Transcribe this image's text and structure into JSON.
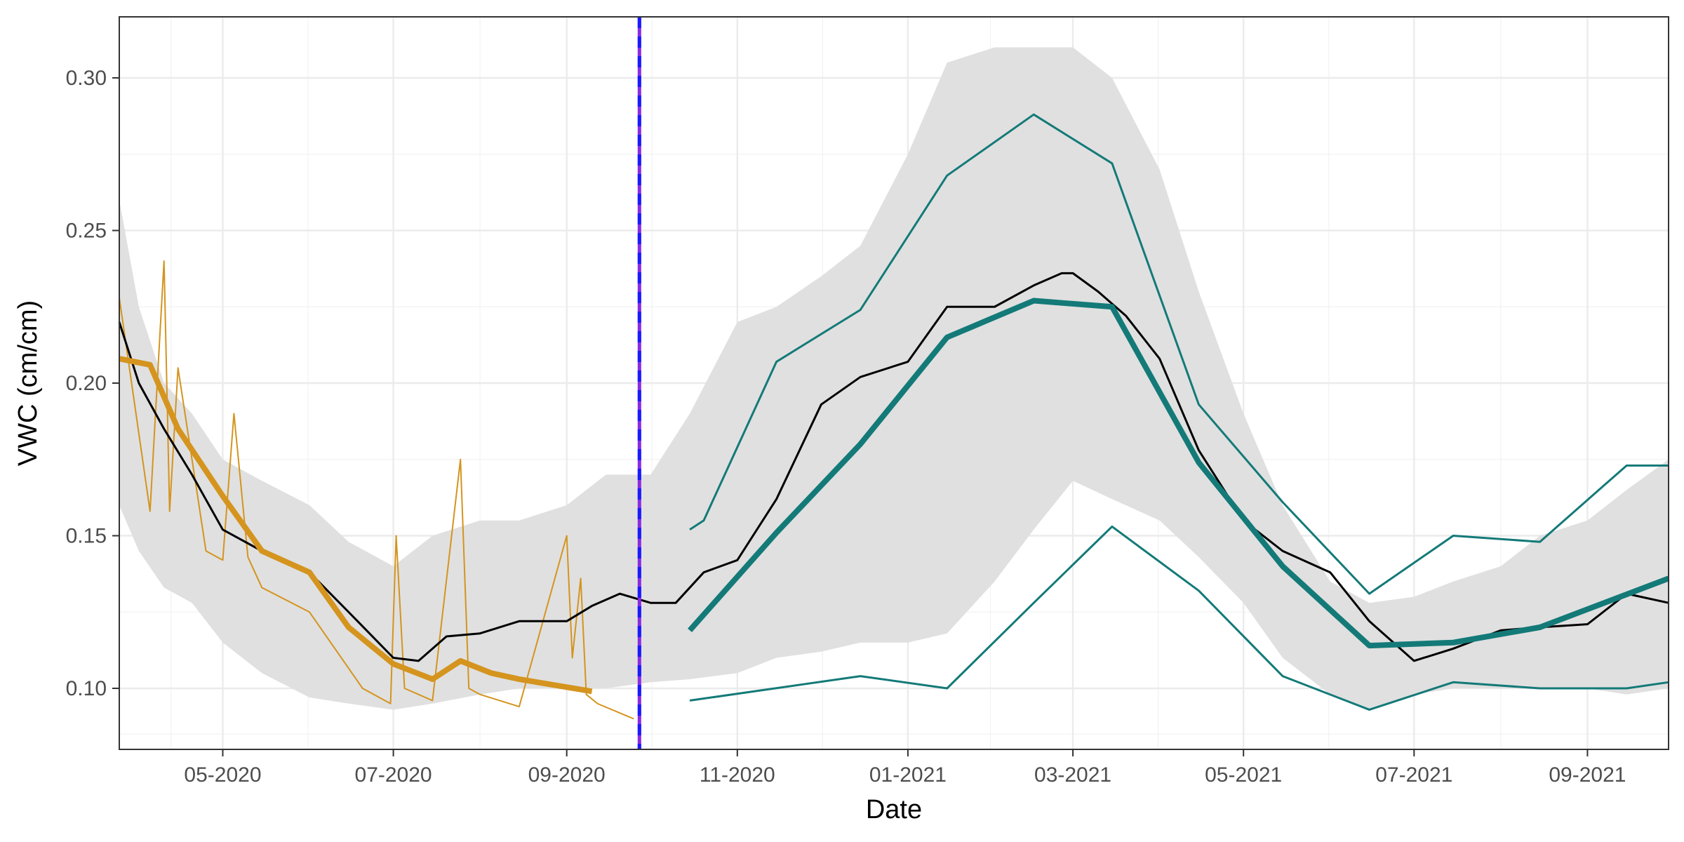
{
  "chart_data": {
    "type": "line",
    "xlabel": "Date",
    "ylabel": "VWC (cm/cm)",
    "xlim": [
      "2020-03-25",
      "2021-09-30"
    ],
    "ylim": [
      0.08,
      0.32
    ],
    "x_ticks": [
      "2020-05-01",
      "2020-07-01",
      "2020-09-01",
      "2020-11-01",
      "2021-01-01",
      "2021-03-01",
      "2021-05-01",
      "2021-07-01",
      "2021-09-01"
    ],
    "x_tick_labels": [
      "05-2020",
      "07-2020",
      "09-2020",
      "11-2020",
      "01-2021",
      "03-2021",
      "05-2021",
      "07-2021",
      "09-2021"
    ],
    "y_ticks": [
      0.1,
      0.15,
      0.2,
      0.25,
      0.3
    ],
    "y_tick_labels": [
      "0.10",
      "0.15",
      "0.20",
      "0.25",
      "0.30"
    ],
    "grid": true,
    "colors": {
      "band": "#e0e0e0",
      "observed": "#000000",
      "orange": "#d4941e",
      "teal": "#137a78",
      "vline_solid": "#8a2be2",
      "vline_dashed": "#1a1aff"
    },
    "vertical_line": {
      "x": "2020-09-27"
    },
    "band": {
      "x": [
        "2020-03-25",
        "2020-04-01",
        "2020-04-10",
        "2020-04-20",
        "2020-05-01",
        "2020-05-15",
        "2020-06-01",
        "2020-06-15",
        "2020-07-01",
        "2020-07-15",
        "2020-08-01",
        "2020-08-15",
        "2020-09-01",
        "2020-09-15",
        "2020-10-01",
        "2020-10-15",
        "2020-11-01",
        "2020-11-15",
        "2020-12-01",
        "2020-12-15",
        "2021-01-01",
        "2021-01-15",
        "2021-02-01",
        "2021-02-15",
        "2021-03-01",
        "2021-03-15",
        "2021-04-01",
        "2021-04-15",
        "2021-05-01",
        "2021-05-15",
        "2021-06-01",
        "2021-06-15",
        "2021-07-01",
        "2021-07-15",
        "2021-08-01",
        "2021-08-15",
        "2021-09-01",
        "2021-09-15",
        "2021-09-30"
      ],
      "lower": [
        0.16,
        0.145,
        0.133,
        0.128,
        0.115,
        0.105,
        0.097,
        0.095,
        0.093,
        0.095,
        0.098,
        0.1,
        0.1,
        0.1,
        0.102,
        0.103,
        0.105,
        0.11,
        0.112,
        0.115,
        0.115,
        0.118,
        0.135,
        0.152,
        0.168,
        0.162,
        0.155,
        0.143,
        0.128,
        0.11,
        0.098,
        0.093,
        0.098,
        0.1,
        0.1,
        0.1,
        0.1,
        0.098,
        0.1
      ],
      "upper": [
        0.26,
        0.225,
        0.2,
        0.19,
        0.175,
        0.168,
        0.16,
        0.148,
        0.14,
        0.15,
        0.155,
        0.155,
        0.16,
        0.17,
        0.17,
        0.19,
        0.22,
        0.225,
        0.235,
        0.245,
        0.275,
        0.305,
        0.31,
        0.31,
        0.31,
        0.3,
        0.27,
        0.23,
        0.19,
        0.16,
        0.135,
        0.128,
        0.13,
        0.135,
        0.14,
        0.15,
        0.155,
        0.165,
        0.175
      ]
    },
    "series": [
      {
        "x": [
          "2020-03-25",
          "2020-04-01",
          "2020-04-10",
          "2020-04-20",
          "2020-05-01",
          "2020-05-15",
          "2020-06-01",
          "2020-06-15",
          "2020-07-01",
          "2020-07-10",
          "2020-07-20",
          "2020-08-01",
          "2020-08-15",
          "2020-09-01",
          "2020-09-10",
          "2020-09-20",
          "2020-10-01",
          "2020-10-10",
          "2020-10-20",
          "2020-11-01",
          "2020-11-15",
          "2020-12-01",
          "2020-12-15",
          "2021-01-01",
          "2021-01-15",
          "2021-02-01",
          "2021-02-15",
          "2021-02-25",
          "2021-03-01",
          "2021-03-10",
          "2021-03-20",
          "2021-04-01",
          "2021-04-15",
          "2021-05-01",
          "2021-05-15",
          "2021-06-01",
          "2021-06-15",
          "2021-07-01",
          "2021-07-15",
          "2021-08-01",
          "2021-08-15",
          "2021-09-01",
          "2021-09-15",
          "2021-09-30"
        ],
        "y": [
          0.22,
          0.2,
          0.185,
          0.17,
          0.152,
          0.145,
          0.138,
          0.125,
          0.11,
          0.109,
          0.117,
          0.118,
          0.122,
          0.122,
          0.127,
          0.131,
          0.128,
          0.128,
          0.138,
          0.142,
          0.162,
          0.193,
          0.202,
          0.207,
          0.225,
          0.225,
          0.232,
          0.236,
          0.236,
          0.23,
          0.222,
          0.208,
          0.178,
          0.155,
          0.145,
          0.138,
          0.122,
          0.109,
          0.113,
          0.119,
          0.12,
          0.121,
          0.131,
          0.128
        ]
      },
      {
        "x": [
          "2020-03-25",
          "2020-04-05",
          "2020-04-15",
          "2020-05-01",
          "2020-05-15",
          "2020-06-01",
          "2020-06-15",
          "2020-07-01",
          "2020-07-15",
          "2020-07-25",
          "2020-08-05",
          "2020-08-15",
          "2020-09-10"
        ],
        "y": [
          0.208,
          0.206,
          0.185,
          0.163,
          0.145,
          0.138,
          0.12,
          0.108,
          0.103,
          0.109,
          0.105,
          0.103,
          0.099
        ]
      },
      {
        "x": [
          "2020-03-25",
          "2020-04-05",
          "2020-04-10",
          "2020-04-12",
          "2020-04-15",
          "2020-04-25",
          "2020-05-01",
          "2020-05-05",
          "2020-05-10",
          "2020-05-15",
          "2020-06-01",
          "2020-06-20",
          "2020-06-30",
          "2020-07-02",
          "2020-07-05",
          "2020-07-15",
          "2020-07-25",
          "2020-07-28",
          "2020-08-01",
          "2020-08-15",
          "2020-09-01",
          "2020-09-03",
          "2020-09-06",
          "2020-09-08",
          "2020-09-12",
          "2020-09-25"
        ],
        "y": [
          0.228,
          0.158,
          0.24,
          0.158,
          0.205,
          0.145,
          0.142,
          0.19,
          0.143,
          0.133,
          0.125,
          0.1,
          0.095,
          0.15,
          0.1,
          0.096,
          0.175,
          0.1,
          0.098,
          0.094,
          0.15,
          0.11,
          0.136,
          0.098,
          0.095,
          0.09
        ]
      },
      {
        "x": [
          "2020-10-15",
          "2020-11-15",
          "2020-12-15",
          "2021-01-15",
          "2021-02-15",
          "2021-03-15",
          "2021-04-15",
          "2021-05-15",
          "2021-06-15",
          "2021-07-15",
          "2021-08-15",
          "2021-09-30"
        ],
        "y": [
          0.119,
          0.151,
          0.18,
          0.215,
          0.227,
          0.225,
          0.174,
          0.14,
          0.114,
          0.115,
          0.12,
          0.136
        ]
      },
      {
        "x": [
          "2020-10-15",
          "2020-10-20",
          "2020-11-15",
          "2020-12-15",
          "2021-01-15",
          "2021-02-15",
          "2021-03-15",
          "2021-04-15",
          "2021-05-15",
          "2021-06-15",
          "2021-07-15",
          "2021-08-15",
          "2021-09-15",
          "2021-09-30"
        ],
        "y": [
          0.152,
          0.155,
          0.207,
          0.224,
          0.268,
          0.288,
          0.272,
          0.193,
          0.161,
          0.131,
          0.15,
          0.148,
          0.173,
          0.173
        ]
      },
      {
        "x": [
          "2020-10-15",
          "2020-12-15",
          "2021-01-15",
          "2021-02-15",
          "2021-03-15",
          "2021-04-15",
          "2021-05-15",
          "2021-06-15",
          "2021-07-15",
          "2021-08-15",
          "2021-09-15",
          "2021-09-30"
        ],
        "y": [
          0.096,
          0.104,
          0.1,
          0.128,
          0.153,
          0.132,
          0.104,
          0.093,
          0.102,
          0.1,
          0.1,
          0.102
        ]
      }
    ]
  }
}
